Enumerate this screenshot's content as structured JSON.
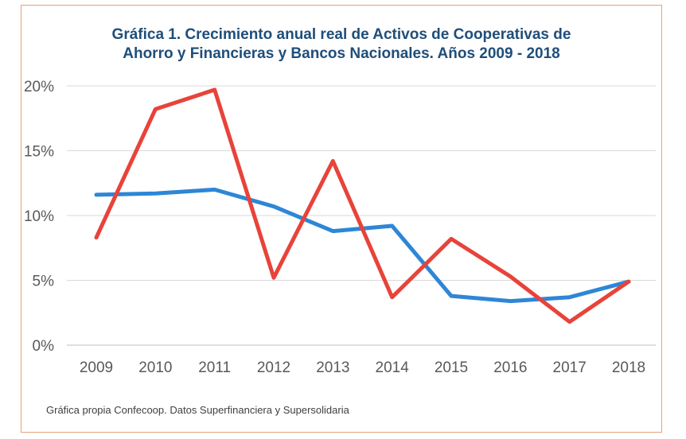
{
  "chart_data": {
    "type": "line",
    "title_line1": "Gráfica 1. Crecimiento anual real de Activos de Cooperativas de",
    "title_line2": "Ahorro y Financieras y Bancos Nacionales.  Años 2009 - 2018",
    "x": [
      "2009",
      "2010",
      "2011",
      "2012",
      "2013",
      "2014",
      "2015",
      "2016",
      "2017",
      "2018"
    ],
    "y_ticks": [
      "0%",
      "5%",
      "10%",
      "15%",
      "20%"
    ],
    "ylim": [
      0,
      20
    ],
    "grid": true,
    "series": [
      {
        "color": "#2e86d6",
        "values": [
          11.6,
          11.7,
          12.0,
          10.7,
          8.8,
          9.2,
          3.8,
          3.4,
          3.7,
          4.9
        ]
      },
      {
        "color": "#e8433a",
        "values": [
          8.3,
          18.2,
          19.7,
          5.2,
          14.2,
          3.7,
          8.2,
          5.3,
          1.8,
          4.9
        ]
      }
    ],
    "source": "Gráfica propia Confecoop. Datos Superfinanciera y Supersolidaria"
  }
}
